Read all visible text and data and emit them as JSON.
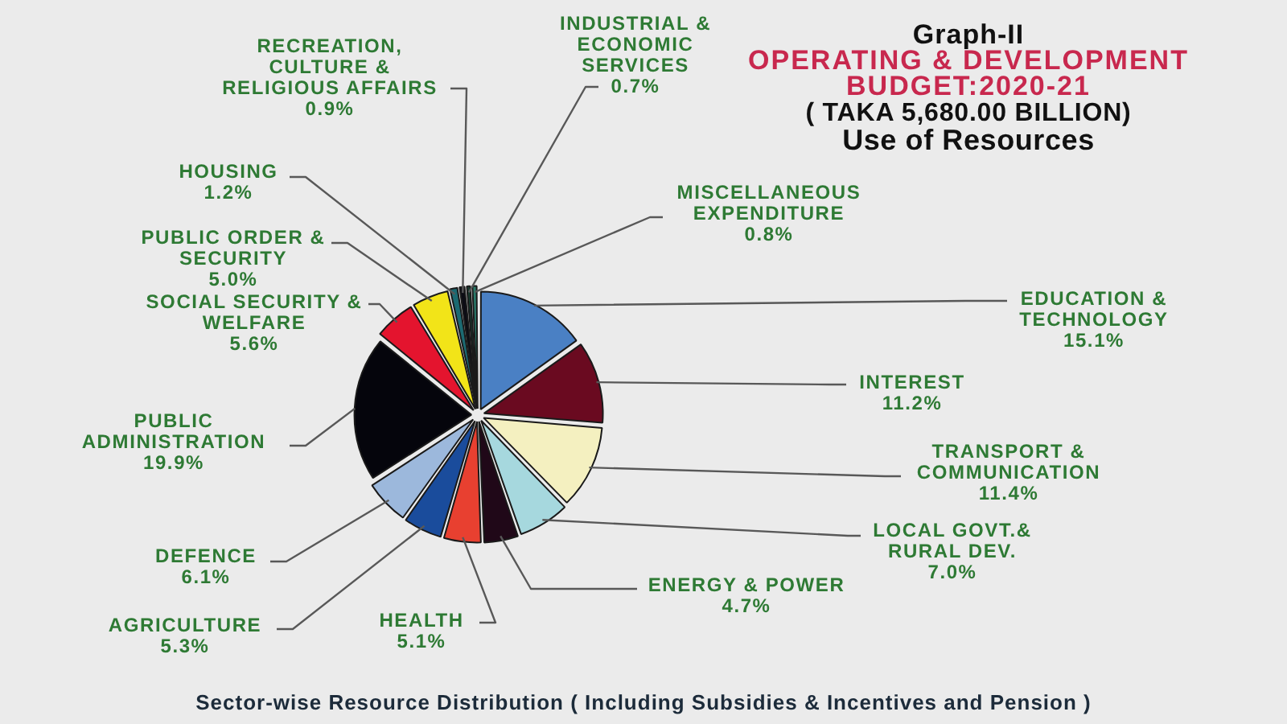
{
  "chart_data": {
    "type": "pie",
    "title": "Graph-II",
    "subtitle": "OPERATING & DEVELOPMENT BUDGET:2020-21",
    "annotations": [
      "( TAKA 5,680.00 BILLION)",
      "Use of Resources",
      "Sector-wise Resource Distribution ( Including Subsidies & Incentives and Pension )"
    ],
    "categories": [
      "EDUCATION & TECHNOLOGY",
      "INTEREST",
      "TRANSPORT & COMMUNICATION",
      "LOCAL GOVT.& RURAL DEV.",
      "ENERGY & POWER",
      "HEALTH",
      "AGRICULTURE",
      "DEFENCE",
      "PUBLIC ADMINISTRATION",
      "SOCIAL SECURITY & WELFARE",
      "PUBLIC ORDER & SECURITY",
      "HOUSING",
      "RECREATION, CULTURE & RELIGIOUS AFFAIRS",
      "INDUSTRIAL & ECONOMIC SERVICES",
      "MISCELLANEOUS EXPENDITURE"
    ],
    "values": [
      15.1,
      11.2,
      11.4,
      7.0,
      4.7,
      5.1,
      5.3,
      6.1,
      19.9,
      5.6,
      5.0,
      1.2,
      0.9,
      0.7,
      0.8
    ],
    "value_labels": [
      "15.1%",
      "11.2%",
      "11.4%",
      "7.0%",
      "4.7%",
      "5.1%",
      "5.3%",
      "6.1%",
      "19.9%",
      "5.6%",
      "5.0%",
      "1.2%",
      "0.9%",
      "0.7%",
      "0.8%"
    ],
    "colors": [
      "#4a80c4",
      "#6a0a20",
      "#f4f0c0",
      "#a6d8de",
      "#200818",
      "#e84030",
      "#1a4c9c",
      "#9cb8dc",
      "#05050c",
      "#e4142e",
      "#f2e418",
      "#1c6a72",
      "#0c0c14",
      "#183c30",
      "#2a7a6a"
    ],
    "legend": false
  }
}
